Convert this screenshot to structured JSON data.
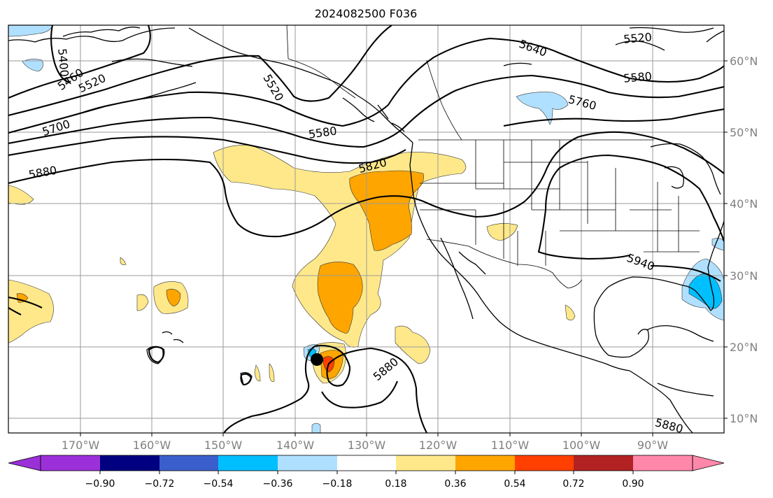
{
  "title": "2024082500 F036",
  "map": {
    "lon_labels": [
      "170°W",
      "160°W",
      "150°W",
      "140°W",
      "130°W",
      "120°W",
      "110°W",
      "100°W",
      "90°W"
    ],
    "lat_labels": [
      "60°N",
      "50°N",
      "40°N",
      "30°N",
      "20°N",
      "10°N"
    ],
    "contour_labels": [
      "5400",
      "5460",
      "5520",
      "5700",
      "5880",
      "5520",
      "5580",
      "5820",
      "5640",
      "5520",
      "5580",
      "5760",
      "5940",
      "5880",
      "5880"
    ],
    "colors": {
      "contour_line": "#000000",
      "grid": "#9a9a9a",
      "neg_0_18": "#b0e0ff",
      "neg_0_36": "#00bfff",
      "pos_0_18": "#ffe88a",
      "pos_0_36": "#ffa500",
      "pos_0_54": "#ff4000"
    },
    "storm_marker": "black-dot"
  },
  "colorbar": {
    "ticks": [
      "−0.90",
      "−0.72",
      "−0.54",
      "−0.36",
      "−0.18",
      "0.18",
      "0.36",
      "0.54",
      "0.72",
      "0.90"
    ],
    "colors": [
      "#9b30d9",
      "#000080",
      "#3a5fcd",
      "#00bfff",
      "#b0e0ff",
      "#ffffff",
      "#ffe88a",
      "#ffa500",
      "#ff4000",
      "#b22222",
      "#ff88aa"
    ],
    "extend": "both"
  }
}
